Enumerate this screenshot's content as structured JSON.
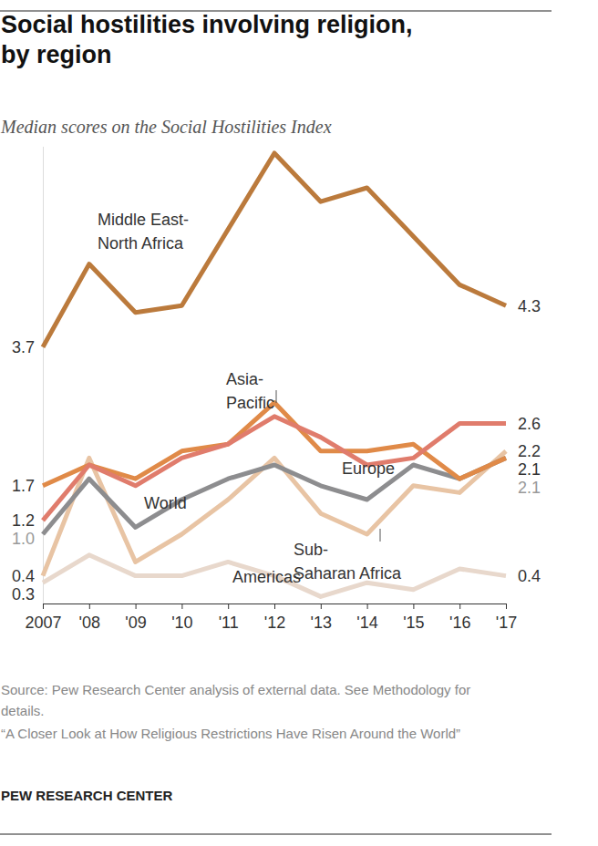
{
  "chart_data": {
    "type": "line",
    "title": "Social hostilities involving religion, by region",
    "subtitle": "Median scores on the Social Hostilities Index",
    "source": "Source: Pew Research Center analysis of external data. See Methodology for details.",
    "note": "“A Closer Look at How Religious Restrictions Have Risen Around the World”",
    "credit": "PEW RESEARCH CENTER",
    "categories": [
      "2007",
      "'08",
      "'09",
      "'10",
      "'11",
      "'12",
      "'13",
      "'14",
      "'15",
      "'16",
      "'17"
    ],
    "ylim": [
      0,
      6.6
    ],
    "yticks": [],
    "tick_labels": "x",
    "grid": false,
    "data_labels": true,
    "series": [
      {
        "name": "Middle East-North Africa",
        "color": "#bb7a3c",
        "values": [
          3.7,
          4.9,
          4.2,
          4.3,
          5.4,
          6.5,
          5.8,
          6.0,
          5.3,
          4.6,
          4.3
        ],
        "value_labels": [
          "3.7",
          null,
          null,
          null,
          null,
          null,
          null,
          null,
          null,
          null,
          "4.3"
        ]
      },
      {
        "name": "Asia-Pacific",
        "color": "#e08a48",
        "values": [
          1.7,
          2.0,
          1.8,
          2.2,
          2.3,
          2.9,
          2.2,
          2.2,
          2.3,
          1.8,
          2.1
        ],
        "value_labels": [
          "1.7",
          null,
          null,
          null,
          null,
          null,
          null,
          null,
          null,
          null,
          "2.1"
        ]
      },
      {
        "name": "Europe",
        "color": "#e07c6c",
        "values": [
          1.2,
          2.0,
          1.7,
          2.1,
          2.3,
          2.7,
          2.4,
          2.0,
          2.1,
          2.6,
          2.6
        ],
        "value_labels": [
          "1.2",
          null,
          null,
          null,
          null,
          null,
          null,
          null,
          null,
          null,
          "2.6"
        ]
      },
      {
        "name": "World",
        "color": "#8d8d8f",
        "values": [
          1.0,
          1.8,
          1.1,
          1.5,
          1.8,
          2.0,
          1.7,
          1.5,
          2.0,
          1.8,
          2.1
        ],
        "value_labels": [
          "1.0",
          null,
          null,
          null,
          null,
          null,
          null,
          null,
          null,
          null,
          "2.1"
        ]
      },
      {
        "name": "Sub-Saharan Africa",
        "color": "#e8c4a4",
        "values": [
          0.4,
          2.1,
          0.6,
          1.0,
          1.5,
          2.1,
          1.3,
          1.0,
          1.7,
          1.6,
          2.2
        ],
        "value_labels": [
          "0.4",
          null,
          null,
          null,
          null,
          null,
          null,
          null,
          null,
          null,
          "2.2"
        ]
      },
      {
        "name": "Americas",
        "color": "#e8d8cc",
        "values": [
          0.3,
          0.7,
          0.4,
          0.4,
          0.6,
          0.4,
          0.1,
          0.3,
          0.2,
          0.5,
          0.4
        ],
        "value_labels": [
          "0.3",
          null,
          null,
          null,
          null,
          null,
          null,
          null,
          null,
          null,
          "0.4"
        ]
      }
    ]
  }
}
